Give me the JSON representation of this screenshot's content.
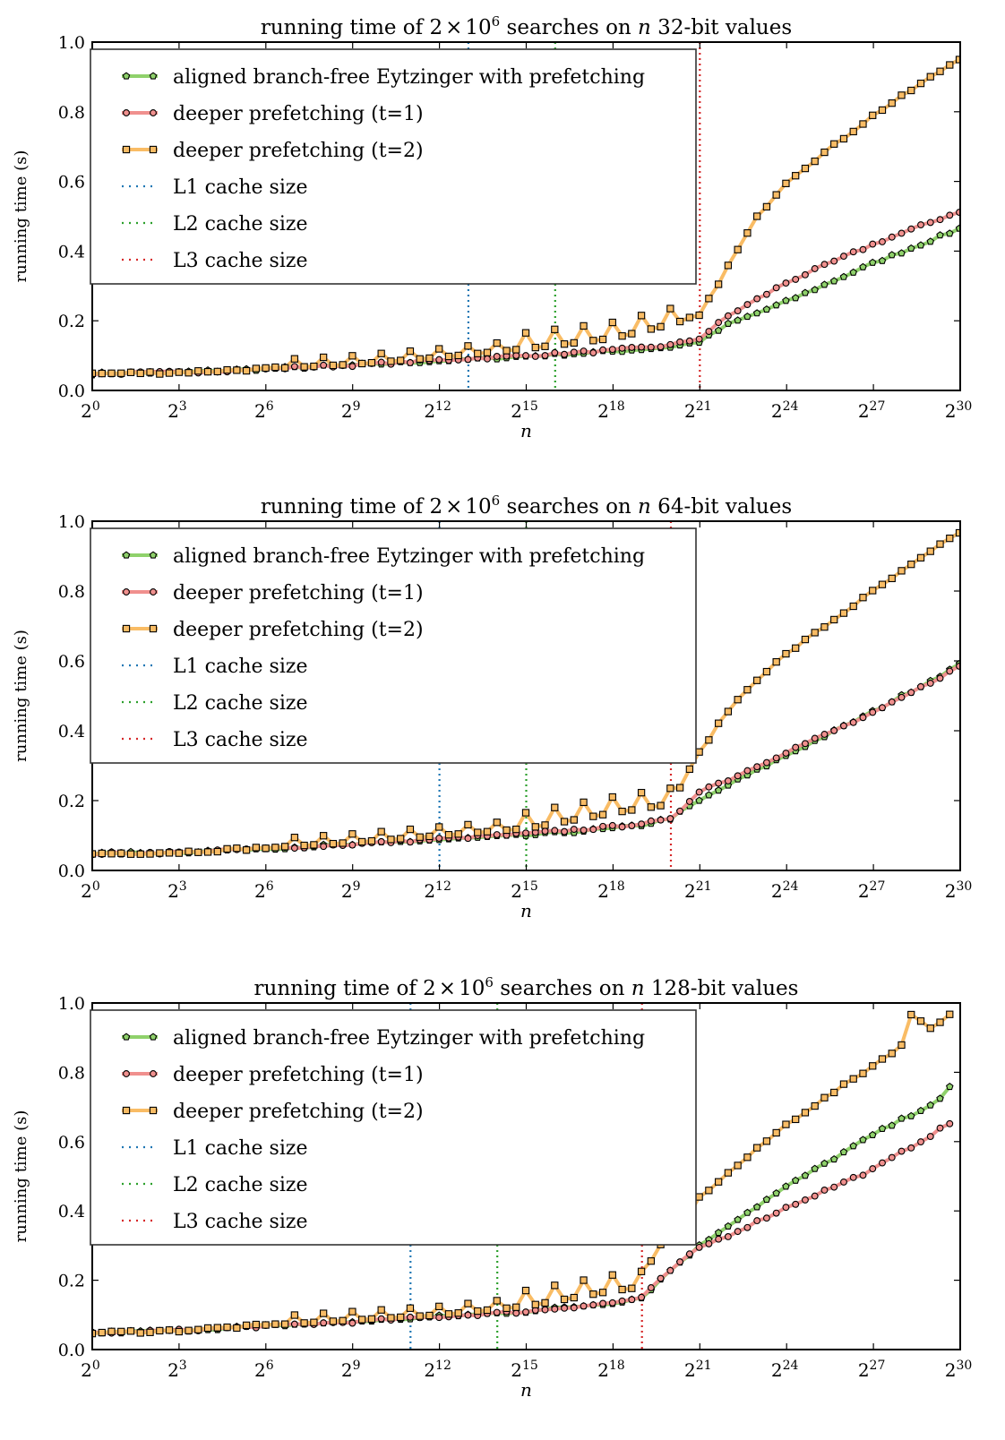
{
  "chart_data": [
    {
      "type": "line",
      "title": "running time of 2×10^6 searches on n 32-bit values",
      "title_parts": [
        "running time of 2",
        "×",
        "10",
        "6",
        " searches on ",
        "n",
        " 32-bit values"
      ],
      "xlabel": "n",
      "ylabel": "running time (s)",
      "xscale": "log2",
      "xlim": [
        "2^0",
        "2^30"
      ],
      "x_ticks": [
        {
          "base": "2",
          "exp": "0"
        },
        {
          "base": "2",
          "exp": "3"
        },
        {
          "base": "2",
          "exp": "6"
        },
        {
          "base": "2",
          "exp": "9"
        },
        {
          "base": "2",
          "exp": "12"
        },
        {
          "base": "2",
          "exp": "15"
        },
        {
          "base": "2",
          "exp": "18"
        },
        {
          "base": "2",
          "exp": "21"
        },
        {
          "base": "2",
          "exp": "24"
        },
        {
          "base": "2",
          "exp": "27"
        },
        {
          "base": "2",
          "exp": "30"
        }
      ],
      "ylim": [
        0,
        1
      ],
      "y_ticks": [
        "0.0",
        "0.2",
        "0.4",
        "0.6",
        "0.8",
        "1.0"
      ],
      "grid": false,
      "legend_position": "upper-left",
      "cache_sizes": [
        {
          "name": "L1 cache size",
          "n": "2^13",
          "color": "#1f77b4"
        },
        {
          "name": "L2 cache size",
          "n": "2^16",
          "color": "#2ca02c"
        },
        {
          "name": "L3 cache size",
          "n": "2^21",
          "color": "#d62728"
        }
      ],
      "series": [
        {
          "name": "aligned branch-free Eytzinger with prefetching",
          "color": "#8fd16b",
          "marker": "pentagon",
          "points": [
            [
              "2^0",
              0.048
            ],
            [
              "2^3",
              0.052
            ],
            [
              "2^6",
              0.062
            ],
            [
              "2^9",
              0.072
            ],
            [
              "2^12",
              0.085
            ],
            [
              "2^15",
              0.098
            ],
            [
              "2^18",
              0.112
            ],
            [
              "2^20",
              0.125
            ],
            [
              "2^21",
              0.14
            ],
            [
              "2^22",
              0.19
            ],
            [
              "2^24",
              0.255
            ],
            [
              "2^27",
              0.365
            ],
            [
              "2^30",
              0.465
            ]
          ]
        },
        {
          "name": "deeper prefetching (t=1)",
          "color": "#f0908e",
          "marker": "circle",
          "points": [
            [
              "2^0",
              0.048
            ],
            [
              "2^3",
              0.052
            ],
            [
              "2^6",
              0.062
            ],
            [
              "2^9",
              0.073
            ],
            [
              "2^12",
              0.087
            ],
            [
              "2^15",
              0.1
            ],
            [
              "2^18",
              0.115
            ],
            [
              "2^20",
              0.13
            ],
            [
              "2^21",
              0.15
            ],
            [
              "2^22",
              0.215
            ],
            [
              "2^24",
              0.31
            ],
            [
              "2^27",
              0.42
            ],
            [
              "2^30",
              0.515
            ]
          ]
        },
        {
          "name": "deeper prefetching (t=2)",
          "color": "#f9bc65",
          "marker": "square",
          "points": [
            [
              "2^0",
              0.048
            ],
            [
              "2^3",
              0.052
            ],
            [
              "2^6",
              0.062
            ],
            [
              "2^9",
              0.075
            ],
            [
              "2^12",
              0.095
            ],
            [
              "2^15",
              0.12
            ],
            [
              "2^18",
              0.15
            ],
            [
              "2^20",
              0.19
            ],
            [
              "2^21",
              0.215
            ],
            [
              "2^22",
              0.36
            ],
            [
              "2^23",
              0.5
            ],
            [
              "2^24",
              0.6
            ],
            [
              "2^27",
              0.79
            ],
            [
              "2^30",
              0.955
            ]
          ]
        },
        {
          "name": "L1 cache size",
          "color": "#1f77b4",
          "marker": "none"
        },
        {
          "name": "L2 cache size",
          "color": "#2ca02c",
          "marker": "none"
        },
        {
          "name": "L3 cache size",
          "color": "#d62728",
          "marker": "none"
        }
      ]
    },
    {
      "type": "line",
      "title": "running time of 2×10^6 searches on n 64-bit values",
      "title_parts": [
        "running time of 2",
        "×",
        "10",
        "6",
        " searches on ",
        "n",
        " 64-bit values"
      ],
      "xlabel": "n",
      "ylabel": "running time (s)",
      "xscale": "log2",
      "xlim": [
        "2^0",
        "2^30"
      ],
      "x_ticks": [
        {
          "base": "2",
          "exp": "0"
        },
        {
          "base": "2",
          "exp": "3"
        },
        {
          "base": "2",
          "exp": "6"
        },
        {
          "base": "2",
          "exp": "9"
        },
        {
          "base": "2",
          "exp": "12"
        },
        {
          "base": "2",
          "exp": "15"
        },
        {
          "base": "2",
          "exp": "18"
        },
        {
          "base": "2",
          "exp": "21"
        },
        {
          "base": "2",
          "exp": "24"
        },
        {
          "base": "2",
          "exp": "27"
        },
        {
          "base": "2",
          "exp": "30"
        }
      ],
      "ylim": [
        0,
        1
      ],
      "y_ticks": [
        "0.0",
        "0.2",
        "0.4",
        "0.6",
        "0.8",
        "1.0"
      ],
      "grid": false,
      "legend_position": "upper-left",
      "cache_sizes": [
        {
          "name": "L1 cache size",
          "n": "2^12",
          "color": "#1f77b4"
        },
        {
          "name": "L2 cache size",
          "n": "2^15",
          "color": "#2ca02c"
        },
        {
          "name": "L3 cache size",
          "n": "2^20",
          "color": "#d62728"
        }
      ],
      "series": [
        {
          "name": "aligned branch-free Eytzinger with prefetching",
          "color": "#8fd16b",
          "marker": "pentagon",
          "points": [
            [
              "2^0",
              0.048
            ],
            [
              "2^3",
              0.052
            ],
            [
              "2^6",
              0.063
            ],
            [
              "2^9",
              0.074
            ],
            [
              "2^12",
              0.088
            ],
            [
              "2^15",
              0.1
            ],
            [
              "2^18",
              0.12
            ],
            [
              "2^19",
              0.13
            ],
            [
              "2^20",
              0.15
            ],
            [
              "2^21",
              0.2
            ],
            [
              "2^22",
              0.245
            ],
            [
              "2^24",
              0.33
            ],
            [
              "2^27",
              0.455
            ],
            [
              "2^30",
              0.59
            ]
          ]
        },
        {
          "name": "deeper prefetching (t=1)",
          "color": "#f0908e",
          "marker": "circle",
          "points": [
            [
              "2^0",
              0.048
            ],
            [
              "2^3",
              0.052
            ],
            [
              "2^6",
              0.063
            ],
            [
              "2^9",
              0.075
            ],
            [
              "2^12",
              0.09
            ],
            [
              "2^15",
              0.105
            ],
            [
              "2^18",
              0.125
            ],
            [
              "2^19",
              0.135
            ],
            [
              "2^20",
              0.145
            ],
            [
              "2^21",
              0.23
            ],
            [
              "2^22",
              0.26
            ],
            [
              "2^24",
              0.34
            ],
            [
              "2^27",
              0.45
            ],
            [
              "2^30",
              0.585
            ]
          ]
        },
        {
          "name": "deeper prefetching (t=2)",
          "color": "#f9bc65",
          "marker": "square",
          "points": [
            [
              "2^0",
              0.048
            ],
            [
              "2^3",
              0.052
            ],
            [
              "2^6",
              0.065
            ],
            [
              "2^9",
              0.08
            ],
            [
              "2^12",
              0.1
            ],
            [
              "2^15",
              0.12
            ],
            [
              "2^18",
              0.165
            ],
            [
              "2^20",
              0.19
            ],
            [
              "2^21",
              0.34
            ],
            [
              "2^22",
              0.46
            ],
            [
              "2^23",
              0.55
            ],
            [
              "2^24",
              0.62
            ],
            [
              "2^27",
              0.8
            ],
            [
              "2^30",
              0.97
            ]
          ]
        },
        {
          "name": "L1 cache size",
          "color": "#1f77b4",
          "marker": "none"
        },
        {
          "name": "L2 cache size",
          "color": "#2ca02c",
          "marker": "none"
        },
        {
          "name": "L3 cache size",
          "color": "#d62728",
          "marker": "none"
        }
      ]
    },
    {
      "type": "line",
      "title": "running time of 2×10^6 searches on n 128-bit values",
      "title_parts": [
        "running time of 2",
        "×",
        "10",
        "6",
        " searches on ",
        "n",
        " 128-bit values"
      ],
      "xlabel": "n",
      "ylabel": "running time (s)",
      "xscale": "log2",
      "xlim": [
        "2^0",
        "2^30"
      ],
      "x_ticks": [
        {
          "base": "2",
          "exp": "0"
        },
        {
          "base": "2",
          "exp": "3"
        },
        {
          "base": "2",
          "exp": "6"
        },
        {
          "base": "2",
          "exp": "9"
        },
        {
          "base": "2",
          "exp": "12"
        },
        {
          "base": "2",
          "exp": "15"
        },
        {
          "base": "2",
          "exp": "18"
        },
        {
          "base": "2",
          "exp": "21"
        },
        {
          "base": "2",
          "exp": "24"
        },
        {
          "base": "2",
          "exp": "27"
        },
        {
          "base": "2",
          "exp": "30"
        }
      ],
      "ylim": [
        0,
        1
      ],
      "y_ticks": [
        "0.0",
        "0.2",
        "0.4",
        "0.6",
        "0.8",
        "1.0"
      ],
      "grid": false,
      "legend_position": "upper-left",
      "cache_sizes": [
        {
          "name": "L1 cache size",
          "n": "2^11",
          "color": "#1f77b4"
        },
        {
          "name": "L2 cache size",
          "n": "2^14",
          "color": "#2ca02c"
        },
        {
          "name": "L3 cache size",
          "n": "2^19",
          "color": "#d62728"
        }
      ],
      "series": [
        {
          "name": "aligned branch-free Eytzinger with prefetching",
          "color": "#8fd16b",
          "marker": "pentagon",
          "points": [
            [
              "2^0",
              0.048
            ],
            [
              "2^3",
              0.055
            ],
            [
              "2^6",
              0.068
            ],
            [
              "2^9",
              0.08
            ],
            [
              "2^12",
              0.095
            ],
            [
              "2^15",
              0.11
            ],
            [
              "2^18",
              0.135
            ],
            [
              "2^19",
              0.15
            ],
            [
              "2^20",
              0.23
            ],
            [
              "2^21",
              0.3
            ],
            [
              "2^22",
              0.36
            ],
            [
              "2^24",
              0.47
            ],
            [
              "2^27",
              0.62
            ],
            [
              "2^29.5",
              0.73
            ],
            [
              "2^29.8",
              0.785
            ]
          ]
        },
        {
          "name": "deeper prefetching (t=1)",
          "color": "#f0908e",
          "marker": "circle",
          "points": [
            [
              "2^0",
              0.048
            ],
            [
              "2^3",
              0.055
            ],
            [
              "2^6",
              0.068
            ],
            [
              "2^9",
              0.08
            ],
            [
              "2^12",
              0.095
            ],
            [
              "2^15",
              0.11
            ],
            [
              "2^18",
              0.135
            ],
            [
              "2^19",
              0.15
            ],
            [
              "2^20",
              0.23
            ],
            [
              "2^21",
              0.295
            ],
            [
              "2^22",
              0.33
            ],
            [
              "2^24",
              0.41
            ],
            [
              "2^27",
              0.52
            ],
            [
              "2^29.8",
              0.66
            ]
          ]
        },
        {
          "name": "deeper prefetching (t=2)",
          "color": "#f9bc65",
          "marker": "square",
          "points": [
            [
              "2^0",
              0.048
            ],
            [
              "2^3",
              0.055
            ],
            [
              "2^6",
              0.07
            ],
            [
              "2^9",
              0.085
            ],
            [
              "2^12",
              0.1
            ],
            [
              "2^15",
              0.125
            ],
            [
              "2^18",
              0.17
            ],
            [
              "2^19",
              0.18
            ],
            [
              "2^19.5",
              0.3
            ],
            [
              "2^20",
              0.31
            ],
            [
              "2^21",
              0.44
            ],
            [
              "2^24",
              0.65
            ],
            [
              "2^27",
              0.82
            ],
            [
              "2^28",
              0.88
            ],
            [
              "2^28.4",
              0.99
            ],
            [
              "2^28.8",
              0.92
            ],
            [
              "2^29.8",
              0.975
            ]
          ]
        },
        {
          "name": "L1 cache size",
          "color": "#1f77b4",
          "marker": "none"
        },
        {
          "name": "L2 cache size",
          "color": "#2ca02c",
          "marker": "none"
        },
        {
          "name": "L3 cache size",
          "color": "#d62728",
          "marker": "none"
        }
      ]
    }
  ]
}
